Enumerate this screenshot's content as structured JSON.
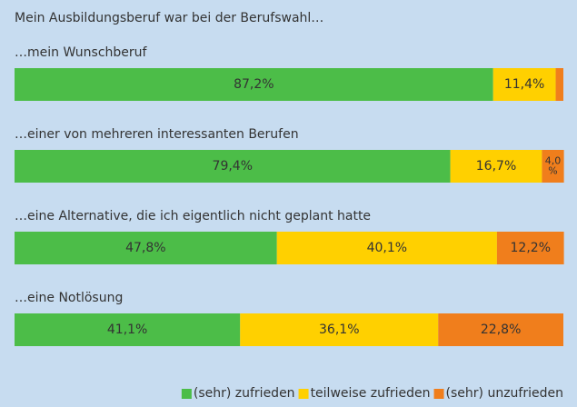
{
  "chart_data": {
    "type": "stacked-bar-horizontal",
    "title": "Mein Ausbildungsberuf war bei der Berufswahl…",
    "categories": [
      "…mein Wunschberuf",
      "…einer von mehreren interessanten Berufen",
      "…eine Alternative, die ich eigentlich nicht geplant hatte",
      "…eine Notlösung"
    ],
    "series": [
      {
        "name": "(sehr) zufrieden",
        "color": "#4cbd48",
        "values": [
          87.2,
          79.4,
          47.8,
          41.1
        ],
        "value_labels": [
          "87,2%",
          "79,4%",
          "47,8%",
          "41,1%"
        ]
      },
      {
        "name": "teilweise zufrieden",
        "color": "#ffd000",
        "values": [
          11.4,
          16.7,
          40.1,
          36.1
        ],
        "value_labels": [
          "11,4%",
          "16,7%",
          "40,1%",
          "36,1%"
        ]
      },
      {
        "name": "(sehr) unzufrieden",
        "color": "#f07e1c",
        "values": [
          1.4,
          4.0,
          12.2,
          22.8
        ],
        "value_labels": [
          null,
          "4,0 %",
          "12,2%",
          "22,8%"
        ]
      }
    ],
    "xlim": [
      0,
      100
    ],
    "legend": "bottom-right"
  }
}
